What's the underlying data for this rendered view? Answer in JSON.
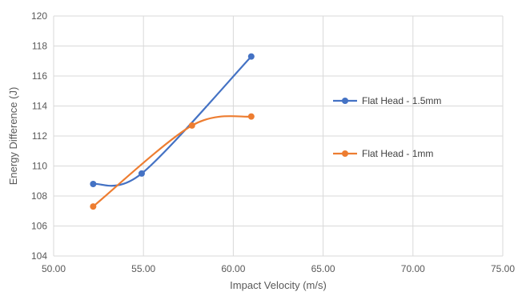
{
  "chart_data": {
    "type": "line",
    "title": "",
    "xlabel": "Impact Velocity (m/s)",
    "ylabel": "Energy Difference (J)",
    "xlim": [
      50,
      75
    ],
    "ylim": [
      104,
      120
    ],
    "x_ticks": [
      50,
      55,
      60,
      65,
      70,
      75
    ],
    "y_ticks": [
      104,
      106,
      108,
      110,
      112,
      114,
      116,
      118,
      120
    ],
    "x_tick_labels": [
      "50.00",
      "55.00",
      "60.00",
      "65.00",
      "70.00",
      "75.00"
    ],
    "y_tick_labels": [
      "104",
      "106",
      "108",
      "110",
      "112",
      "114",
      "116",
      "118",
      "120"
    ],
    "grid": true,
    "smoothed": true,
    "legend_position": "right",
    "series": [
      {
        "name": "Flat Head - 1.5mm",
        "color": "#4472C4",
        "x": [
          52.2,
          54.9,
          61.0
        ],
        "y": [
          108.8,
          109.5,
          117.3
        ]
      },
      {
        "name": "Flat Head - 1mm",
        "color": "#ED7D31",
        "x": [
          52.2,
          57.7,
          61.0
        ],
        "y": [
          107.3,
          112.7,
          113.3
        ]
      }
    ]
  }
}
